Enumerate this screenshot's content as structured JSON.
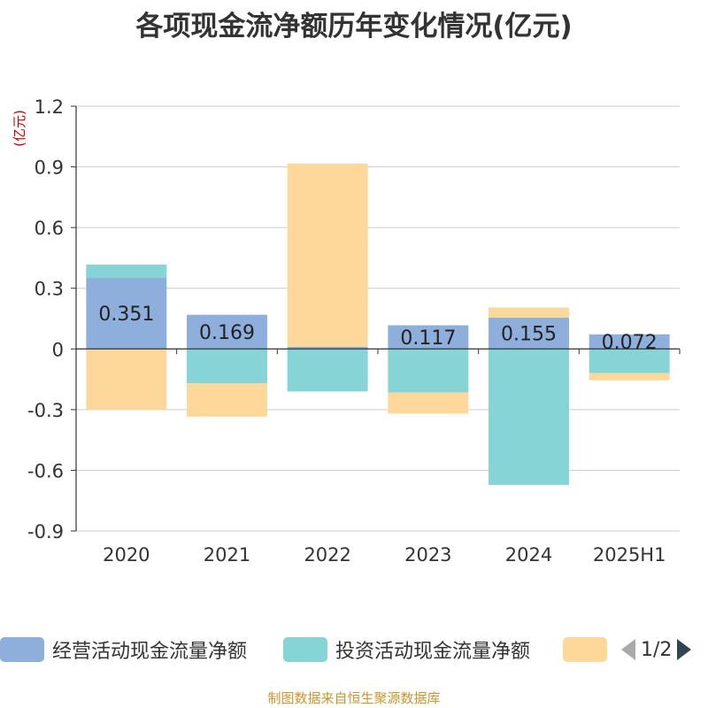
{
  "chart_data": {
    "type": "bar",
    "stacked": true,
    "title": "各项现金流净额历年变化情况(亿元)",
    "ylabel": "(亿元)",
    "categories": [
      "2020",
      "2021",
      "2022",
      "2023",
      "2024",
      "2025H1"
    ],
    "ylim": [
      -0.9,
      1.2
    ],
    "yticks": [
      "1.2",
      "0.9",
      "0.6",
      "0.3",
      "0",
      "-0.3",
      "-0.6",
      "-0.9"
    ],
    "grid": true,
    "series": [
      {
        "name": "经营活动现金流量净额",
        "color": "#8eaedc",
        "values": [
          0.351,
          0.169,
          0.011,
          0.117,
          0.155,
          0.072
        ],
        "labels": [
          "0.351",
          "0.169",
          "",
          "0.117",
          "0.155",
          "0.072"
        ]
      },
      {
        "name": "投资活动现金流量净额",
        "color": "#86d4d6",
        "values": [
          0.066,
          -0.17,
          -0.21,
          -0.215,
          -0.672,
          -0.12
        ]
      },
      {
        "name": "",
        "color": "#fed89a",
        "values": [
          -0.3,
          -0.165,
          0.905,
          -0.105,
          0.05,
          -0.035
        ]
      }
    ],
    "legend_page": "1/2"
  },
  "source": "制图数据来自恒生聚源数据库"
}
